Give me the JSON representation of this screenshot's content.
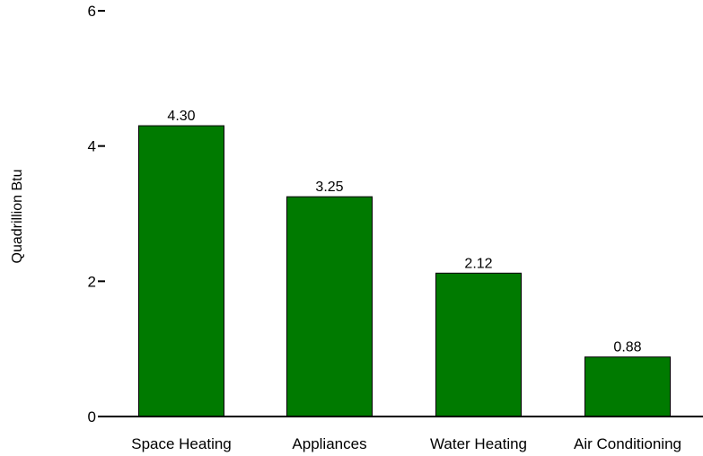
{
  "chart_data": {
    "type": "bar",
    "title": "",
    "xlabel": "",
    "ylabel": "Quadrillion Btu",
    "categories": [
      "Space Heating",
      "Appliances",
      "Water Heating",
      "Air Conditioning"
    ],
    "values": [
      4.3,
      3.25,
      2.12,
      0.88
    ],
    "value_labels": [
      "4.30",
      "3.25",
      "2.12",
      "0.88"
    ],
    "ylim": [
      0,
      6
    ],
    "yticks": [
      0,
      2,
      4,
      6
    ],
    "ytick_labels": [
      "0",
      "2",
      "4",
      "6"
    ],
    "grid": false,
    "bar_color": "#007a00"
  }
}
